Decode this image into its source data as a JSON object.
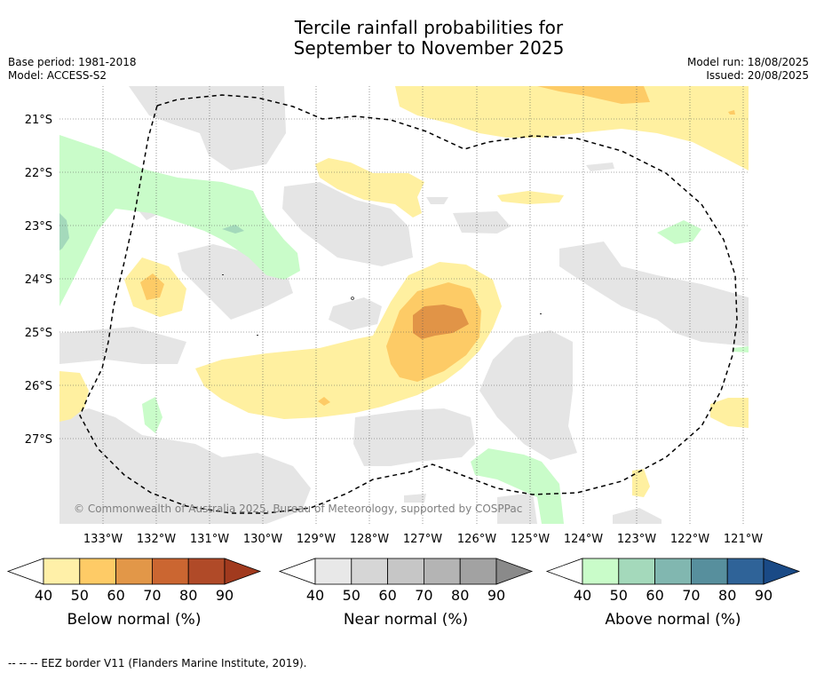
{
  "title_line1": "Tercile rainfall probabilities for",
  "title_line2": "September to November 2025",
  "base_period": "Base period: 1981-2018",
  "model": "Model: ACCESS-S2",
  "model_run": "Model run: 18/08/2025",
  "issued": "Issued: 20/08/2025",
  "copyright": "© Commonwealth of Australia 2025, Bureau of Meteorology, supported by COSPPac",
  "footnote": "--  --  -- EEZ border V11 (Flanders Marine Institute, 2019).",
  "longitude_labels": [
    "133°W",
    "132°W",
    "131°W",
    "130°W",
    "129°W",
    "128°W",
    "127°W",
    "126°W",
    "125°W",
    "124°W",
    "123°W",
    "122°W",
    "121°W"
  ],
  "latitude_labels": [
    "21°S",
    "22°S",
    "23°S",
    "24°S",
    "25°S",
    "26°S",
    "27°S"
  ],
  "colorbars": [
    {
      "label": "Below normal (%)",
      "ticks": [
        "40",
        "50",
        "60",
        "70",
        "80",
        "90"
      ],
      "colors": [
        "#fff0a8",
        "#fecb66",
        "#e29748",
        "#cb6631",
        "#b04a28",
        "#a13a1e"
      ]
    },
    {
      "label": "Near normal (%)",
      "ticks": [
        "40",
        "50",
        "60",
        "70",
        "80",
        "90"
      ],
      "colors": [
        "#e8e8e8",
        "#d6d6d6",
        "#c6c6c6",
        "#b4b4b4",
        "#a2a2a2",
        "#8a8a8a"
      ]
    },
    {
      "label": "Above normal (%)",
      "ticks": [
        "40",
        "50",
        "60",
        "70",
        "80",
        "90"
      ],
      "colors": [
        "#c9fcc9",
        "#a4d9bb",
        "#81b7b0",
        "#578f9d",
        "#2f6398",
        "#1a4a86"
      ]
    }
  ],
  "colors": {
    "gray": "#e5e5e5",
    "yellow": "#fff0a0",
    "orange": "#fdcb66",
    "brown": "#e19447",
    "green": "#c9fcc9",
    "teal": "#a4d9bb"
  }
}
